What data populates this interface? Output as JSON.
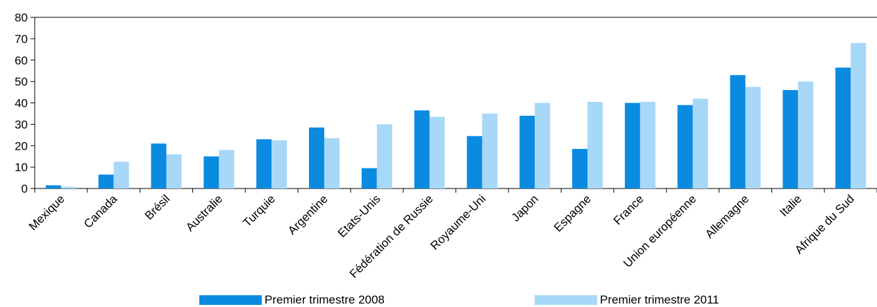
{
  "chart_data": {
    "type": "bar",
    "categories": [
      "Mexique",
      "Canada",
      "Brésil",
      "Australie",
      "Turquie",
      "Argentine",
      "Etats-Unis",
      "Fédération de Russie",
      "Royaume-Uni",
      "Japon",
      "Espagne",
      "France",
      "Union européenne",
      "Allemagne",
      "Italie",
      "Afrique du Sud"
    ],
    "series": [
      {
        "name": "Premier trimestre 2008",
        "color": "#0a8be0",
        "values": [
          1.5,
          6.5,
          21,
          15,
          23,
          28.5,
          9.5,
          36.5,
          24.5,
          34,
          18.5,
          40,
          39,
          53,
          46,
          56.5
        ]
      },
      {
        "name": "Premier trimestre 2011",
        "color": "#a8d8f8",
        "values": [
          0.8,
          12.5,
          16,
          18,
          22.5,
          23.5,
          30,
          33.5,
          35,
          40,
          40.5,
          40.5,
          42,
          47.5,
          50,
          68
        ]
      }
    ],
    "yticks": [
      "0",
      "10",
      "20",
      "30",
      "40",
      "50",
      "60",
      "70",
      "80"
    ],
    "ylim": [
      0,
      80
    ],
    "grid": false,
    "legend_position": "bottom",
    "xlabel": "",
    "ylabel": ""
  }
}
